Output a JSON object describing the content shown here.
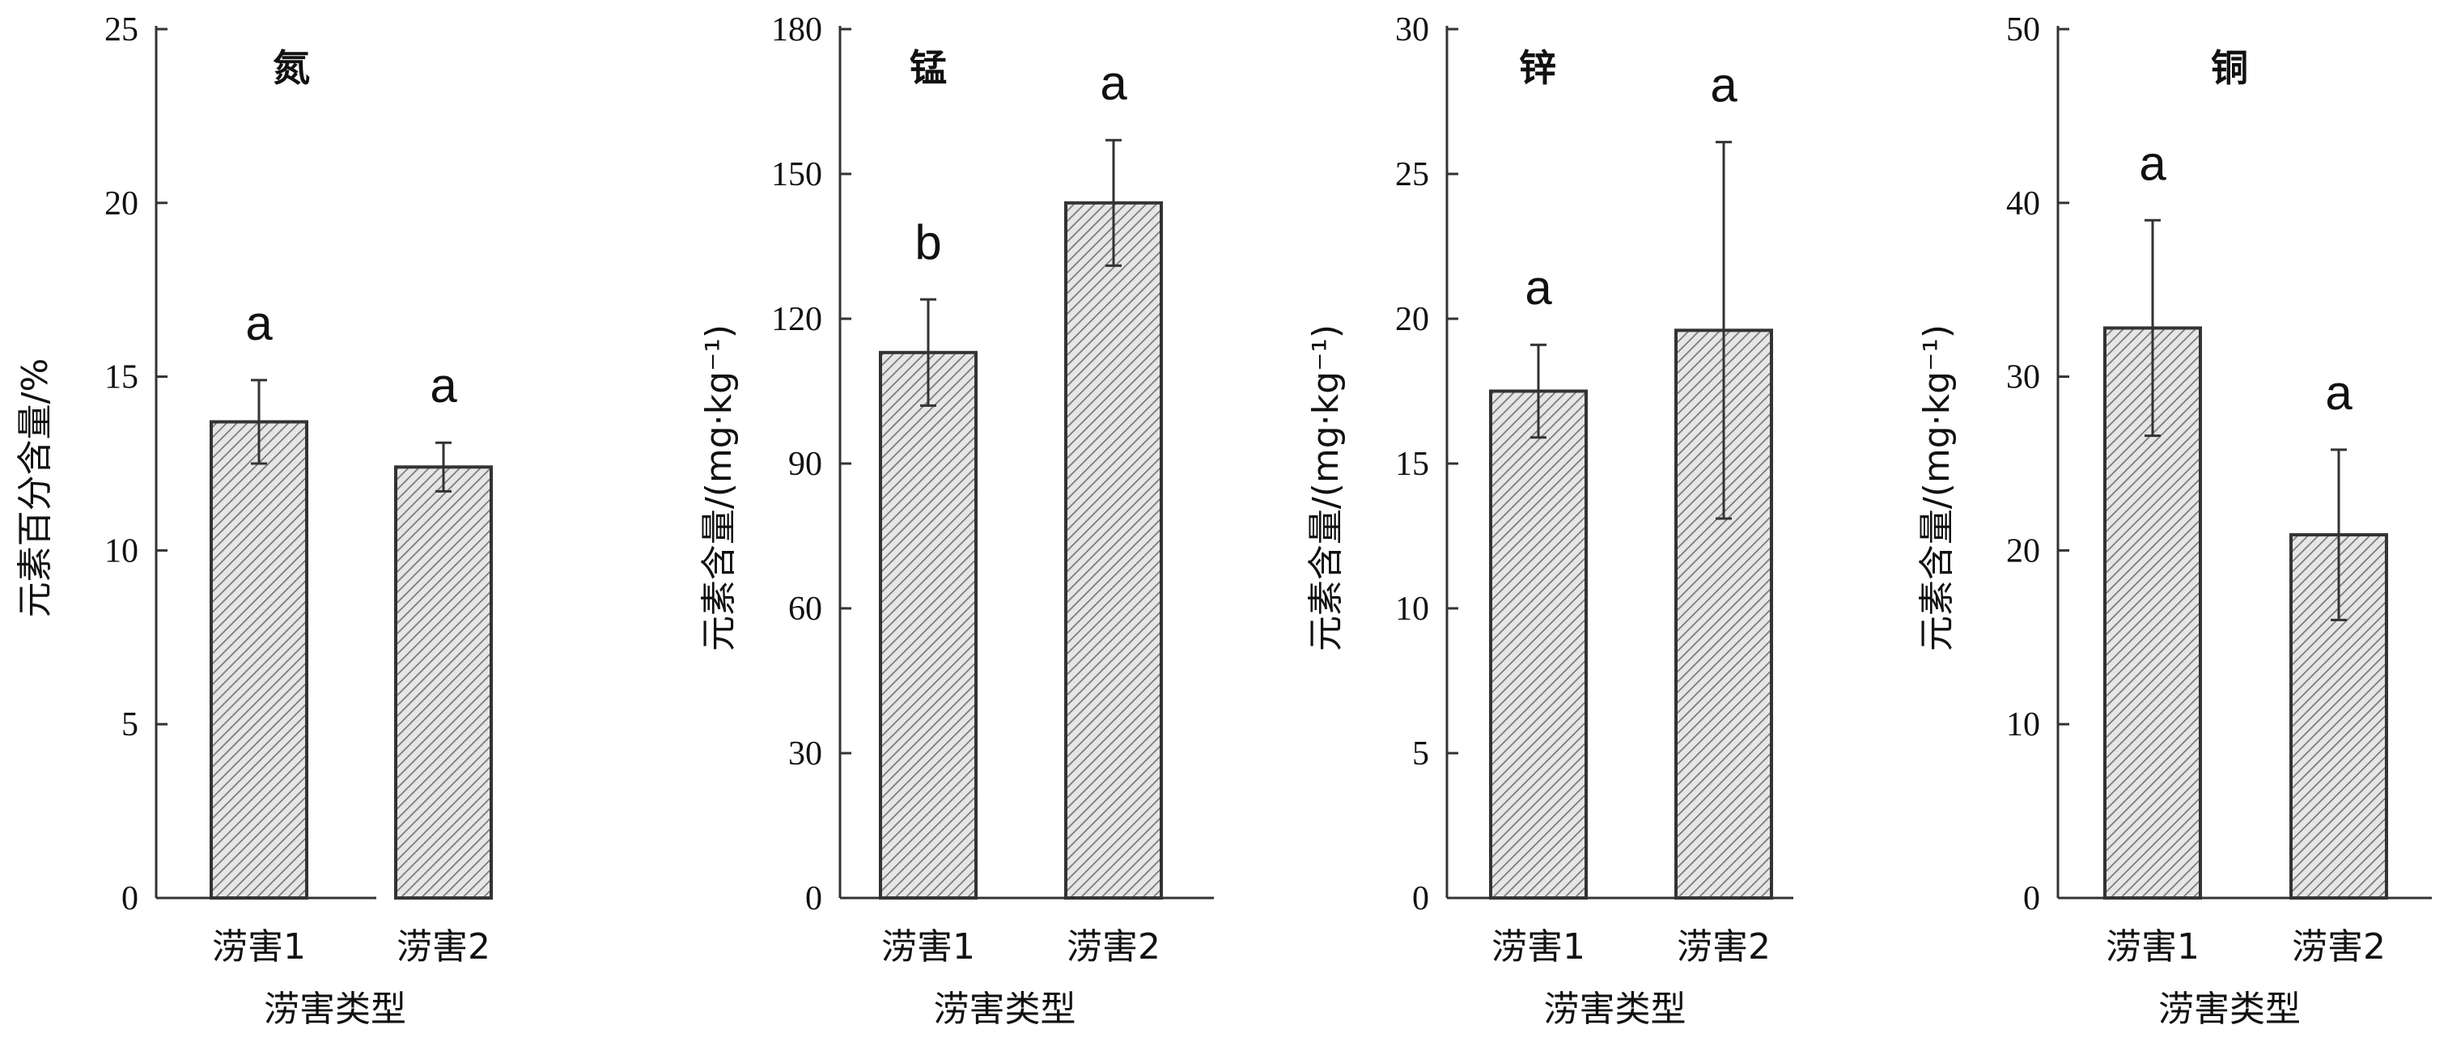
{
  "chart_data": [
    {
      "type": "bar",
      "title": "氮",
      "ylabel": "元素百分含量/%",
      "xlabel": "涝害类型",
      "categories": [
        "涝害1",
        "涝害2"
      ],
      "values": [
        13.7,
        12.4
      ],
      "errors": [
        1.2,
        0.7
      ],
      "significance": [
        "a",
        "a"
      ],
      "ylim": [
        0,
        25
      ],
      "yticks": [
        0,
        5,
        10,
        15,
        20,
        25
      ],
      "ytick_labels": [
        "0",
        "5",
        "10",
        "15",
        "20",
        "25"
      ],
      "grid": false
    },
    {
      "type": "bar",
      "title": "锰",
      "ylabel": "元素含量/(mg·kg⁻¹)",
      "xlabel": "涝害类型",
      "categories": [
        "涝害1",
        "涝害2"
      ],
      "values": [
        113,
        144
      ],
      "errors": [
        11,
        13
      ],
      "significance": [
        "b",
        "a"
      ],
      "ylim": [
        0,
        180
      ],
      "yticks": [
        0,
        30,
        60,
        90,
        120,
        150,
        180
      ],
      "ytick_labels": [
        "0",
        "30",
        "60",
        "90",
        "120",
        "150",
        "180"
      ],
      "grid": false
    },
    {
      "type": "bar",
      "title": "锌",
      "ylabel": "元素含量/(mg·kg⁻¹)",
      "xlabel": "涝害类型",
      "categories": [
        "涝害1",
        "涝害2"
      ],
      "values": [
        17.5,
        19.6
      ],
      "errors": [
        1.6,
        6.5
      ],
      "significance": [
        "a",
        "a"
      ],
      "ylim": [
        0,
        30
      ],
      "yticks": [
        0,
        5,
        10,
        15,
        20,
        25,
        30
      ],
      "ytick_labels": [
        "0",
        "5",
        "10",
        "15",
        "20",
        "25",
        "30"
      ],
      "grid": false
    },
    {
      "type": "bar",
      "title": "铜",
      "ylabel": "元素含量/(mg·kg⁻¹)",
      "xlabel": "涝害类型",
      "categories": [
        "涝害1",
        "涝害2"
      ],
      "values": [
        32.8,
        20.9
      ],
      "errors": [
        6.2,
        4.9
      ],
      "significance": [
        "a",
        "a"
      ],
      "ylim": [
        0,
        50
      ],
      "yticks": [
        0,
        10,
        20,
        30,
        40,
        50
      ],
      "ytick_labels": [
        "0",
        "10",
        "20",
        "30",
        "40",
        "50"
      ],
      "grid": false
    }
  ]
}
